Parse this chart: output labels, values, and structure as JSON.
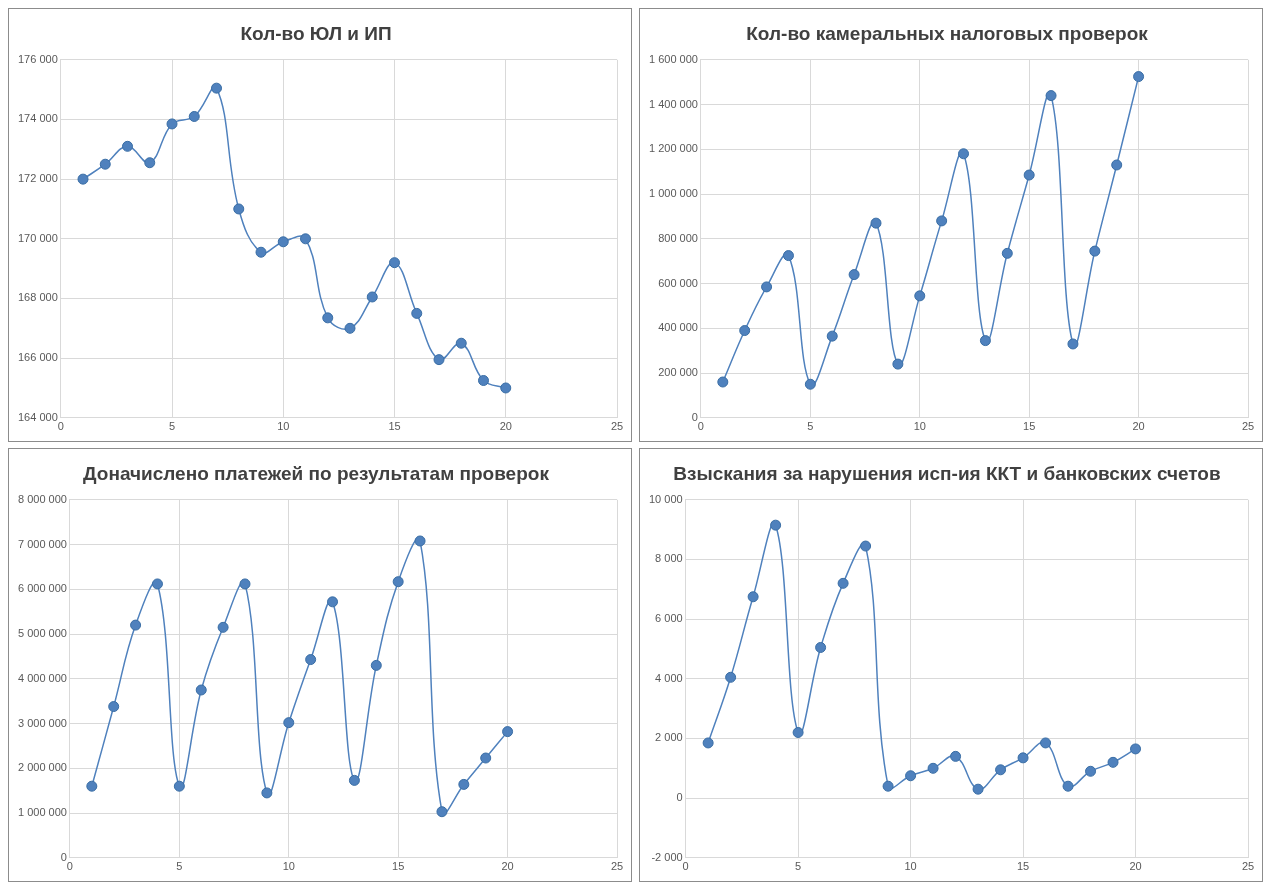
{
  "chart_data": [
    {
      "type": "line",
      "title": "Кол-во ЮЛ и ИП",
      "x": [
        1,
        2,
        3,
        4,
        5,
        6,
        7,
        8,
        9,
        10,
        11,
        12,
        13,
        14,
        15,
        16,
        17,
        18,
        19,
        20
      ],
      "marker": "circle",
      "grid": true,
      "series": [
        {
          "color": "#4f81bd",
          "values": [
            172000,
            172500,
            173100,
            172550,
            173850,
            174100,
            175050,
            171000,
            169550,
            169900,
            170000,
            167350,
            167000,
            168050,
            169200,
            167500,
            165950,
            166500,
            165250,
            165000
          ]
        }
      ],
      "xlim": [
        0,
        25
      ],
      "xticks": [
        0,
        5,
        10,
        15,
        20,
        25
      ],
      "ylim": [
        164000,
        176000
      ],
      "yticks": [
        {
          "value": 164000,
          "label": "164 000"
        },
        {
          "value": 166000,
          "label": "166 000"
        },
        {
          "value": 168000,
          "label": "168 000"
        },
        {
          "value": 170000,
          "label": "170 000"
        },
        {
          "value": 172000,
          "label": "172 000"
        },
        {
          "value": 174000,
          "label": "174 000"
        },
        {
          "value": 176000,
          "label": "176 000"
        }
      ]
    },
    {
      "type": "line",
      "title": "Кол-во камеральных налоговых проверок",
      "x": [
        1,
        2,
        3,
        4,
        5,
        6,
        7,
        8,
        9,
        10,
        11,
        12,
        13,
        14,
        15,
        16,
        17,
        18,
        19,
        20
      ],
      "marker": "circle",
      "grid": true,
      "series": [
        {
          "color": "#4f81bd",
          "values": [
            160000,
            390000,
            585000,
            725000,
            150000,
            365000,
            640000,
            870000,
            240000,
            545000,
            880000,
            1180000,
            345000,
            735000,
            1085000,
            1440000,
            330000,
            745000,
            1130000,
            1525000
          ]
        }
      ],
      "xlim": [
        0,
        25
      ],
      "xticks": [
        0,
        5,
        10,
        15,
        20,
        25
      ],
      "ylim": [
        0,
        1600000
      ],
      "yticks": [
        {
          "value": 0,
          "label": "0"
        },
        {
          "value": 200000,
          "label": "200 000"
        },
        {
          "value": 400000,
          "label": "400 000"
        },
        {
          "value": 600000,
          "label": "600 000"
        },
        {
          "value": 800000,
          "label": "800 000"
        },
        {
          "value": 1000000,
          "label": "1 000 000"
        },
        {
          "value": 1200000,
          "label": "1 200 000"
        },
        {
          "value": 1400000,
          "label": "1 400 000"
        },
        {
          "value": 1600000,
          "label": "1 600 000"
        }
      ]
    },
    {
      "type": "line",
      "title": "Доначислено платежей по результатам проверок",
      "x": [
        1,
        2,
        3,
        4,
        5,
        6,
        7,
        8,
        9,
        10,
        11,
        12,
        13,
        14,
        15,
        16,
        17,
        18,
        19,
        20
      ],
      "marker": "circle",
      "grid": true,
      "series": [
        {
          "color": "#4f81bd",
          "values": [
            1600000,
            3380000,
            5200000,
            6120000,
            1600000,
            3750000,
            5150000,
            6120000,
            1450000,
            3020000,
            4430000,
            5720000,
            1730000,
            4300000,
            6170000,
            7080000,
            1030000,
            1640000,
            2230000,
            2820000
          ]
        }
      ],
      "xlim": [
        0,
        25
      ],
      "xticks": [
        0,
        5,
        10,
        15,
        20,
        25
      ],
      "ylim": [
        0,
        8000000
      ],
      "yticks": [
        {
          "value": 0,
          "label": "0"
        },
        {
          "value": 1000000,
          "label": "1 000 000"
        },
        {
          "value": 2000000,
          "label": "2 000 000"
        },
        {
          "value": 3000000,
          "label": "3 000 000"
        },
        {
          "value": 4000000,
          "label": "4 000 000"
        },
        {
          "value": 5000000,
          "label": "5 000 000"
        },
        {
          "value": 6000000,
          "label": "6 000 000"
        },
        {
          "value": 7000000,
          "label": "7 000 000"
        },
        {
          "value": 8000000,
          "label": "8 000 000"
        }
      ]
    },
    {
      "type": "line",
      "title": "Взыскания за нарушения исп-ия ККТ и банковских счетов",
      "x": [
        1,
        2,
        3,
        4,
        5,
        6,
        7,
        8,
        9,
        10,
        11,
        12,
        13,
        14,
        15,
        16,
        17,
        18,
        19,
        20
      ],
      "marker": "circle",
      "grid": true,
      "series": [
        {
          "color": "#4f81bd",
          "values": [
            1850,
            4050,
            6750,
            9150,
            2200,
            5050,
            7200,
            8450,
            400,
            750,
            1000,
            1400,
            300,
            950,
            1350,
            1850,
            400,
            900,
            1200,
            1650
          ]
        }
      ],
      "xlim": [
        0,
        25
      ],
      "xticks": [
        0,
        5,
        10,
        15,
        20,
        25
      ],
      "ylim": [
        -2000,
        10000
      ],
      "yticks": [
        {
          "value": -2000,
          "label": "-2 000"
        },
        {
          "value": 0,
          "label": "0"
        },
        {
          "value": 2000,
          "label": "2 000"
        },
        {
          "value": 4000,
          "label": "4 000"
        },
        {
          "value": 6000,
          "label": "6 000"
        },
        {
          "value": 8000,
          "label": "8 000"
        },
        {
          "value": 10000,
          "label": "10 000"
        }
      ]
    }
  ]
}
